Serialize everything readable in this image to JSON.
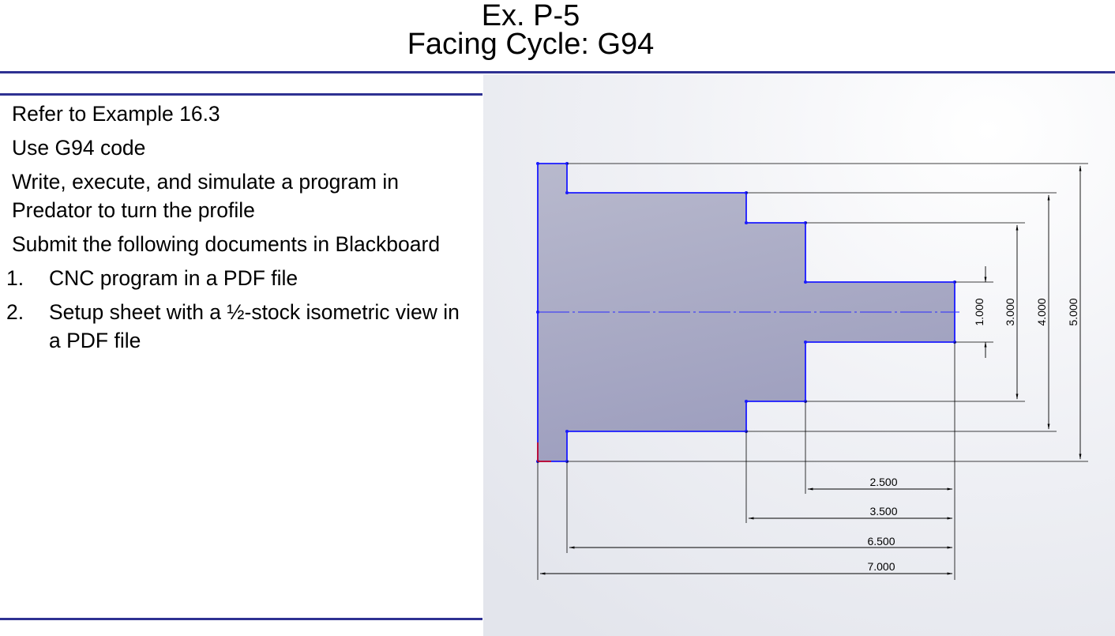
{
  "slide": {
    "title_line1": "Ex. P-5",
    "title_line2": "Facing Cycle: G94"
  },
  "instructions": {
    "lines": [
      "Refer to Example 16.3",
      "Use G94 code",
      "Write, execute, and simulate a program in Predator to turn the profile",
      "Submit the following documents in Blackboard"
    ],
    "items": [
      {
        "num": "1.",
        "text": "CNC program in a PDF file"
      },
      {
        "num": "2.",
        "text": "Setup sheet with a ½-stock isometric view in a PDF file"
      }
    ]
  },
  "drawing": {
    "diameter_dims": [
      "1.000",
      "3.000",
      "4.000",
      "5.000"
    ],
    "length_dims": [
      "2.500",
      "3.500",
      "6.500",
      "7.000"
    ],
    "colors": {
      "profile": "#1a1aff",
      "part_fill_top": "#b6b7cc",
      "part_fill_bottom": "#9e9fbf",
      "title_rule": "#2e3192"
    }
  }
}
